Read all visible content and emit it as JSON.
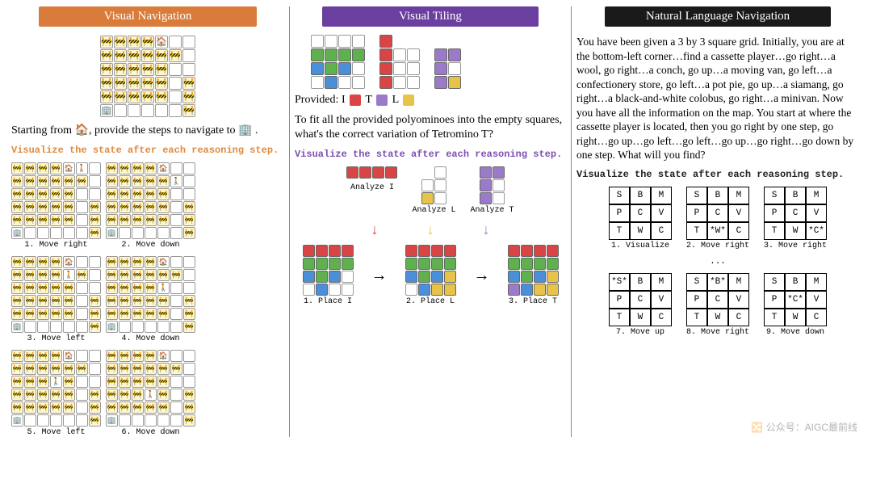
{
  "colors": {
    "header_orange": "#d97b3a",
    "header_purple": "#6b3fa0",
    "header_black": "#1a1a1a",
    "viz_orange": "#e08a3d",
    "viz_purple": "#7b4fb0",
    "viz_black": "#222222",
    "green": "#5fb04f",
    "blue": "#4a8fd8",
    "red": "#d94545",
    "purple": "#9b7bc9",
    "yellow": "#e8c34a",
    "empty": "#ffffff",
    "barrier_bg": "#fff6cc"
  },
  "emoji": {
    "barrier": "🚧",
    "house": "🏠",
    "building": "🏢",
    "person": "🚶"
  },
  "visual_nav": {
    "header": "Visual Navigation",
    "grid": {
      "rows": 6,
      "cols": 7,
      "cells": [
        "B",
        "B",
        "B",
        "B",
        "H",
        "E",
        "E",
        "B",
        "B",
        "B",
        "B",
        "B",
        "B",
        "E",
        "B",
        "B",
        "B",
        "B",
        "B",
        "E",
        "E",
        "B",
        "B",
        "B",
        "B",
        "B",
        "E",
        "B",
        "B",
        "B",
        "B",
        "B",
        "B",
        "E",
        "B",
        "D",
        "E",
        "E",
        "E",
        "E",
        "E",
        "B"
      ]
    },
    "prompt_pre": "Starting from ",
    "prompt_mid": ", provide the steps to navigate to ",
    "prompt_end": " .",
    "viz_label": "Visualize the state after each reasoning step.",
    "steps": [
      {
        "label": "1. Move right",
        "person": [
          0,
          5
        ]
      },
      {
        "label": "2. Move down",
        "person": [
          1,
          5
        ]
      },
      {
        "label": "3. Move left",
        "person": [
          1,
          4
        ]
      },
      {
        "label": "4. Move down",
        "person": [
          2,
          4
        ]
      },
      {
        "label": "5. Move left",
        "person": [
          2,
          3
        ]
      },
      {
        "label": "6. Move down",
        "person": [
          3,
          3
        ]
      }
    ]
  },
  "visual_tiling": {
    "header": "Visual Tiling",
    "base": {
      "rows": 4,
      "cols": 11,
      "cells": [
        "E",
        "E",
        "E",
        "E",
        ".",
        "R",
        ".",
        ".",
        ".",
        ".",
        ".",
        "G",
        "G",
        "G",
        "G",
        ".",
        "R",
        "E",
        "E",
        ".",
        "P",
        "P",
        "B",
        "G",
        "B",
        "E",
        ".",
        "R",
        "E",
        "E",
        ".",
        "P",
        "E",
        "E",
        "B",
        "E",
        "E",
        ".",
        "R",
        "E",
        "E",
        ".",
        "P",
        "Y"
      ]
    },
    "provided_label": "Provided:",
    "provided_items": [
      {
        "letter": "I",
        "color_key": "red"
      },
      {
        "letter": "T",
        "color_key": "purple"
      },
      {
        "letter": "L",
        "color_key": "yellow"
      }
    ],
    "prompt": "To fit all the provided polyominoes into the empty squares, what's the correct variation of Tetromino T?",
    "viz_label": "Visualize the state after each reasoning step.",
    "analyze": [
      {
        "label": "Analyze I",
        "shape": [
          "RRRR"
        ],
        "arrow_color_key": "red"
      },
      {
        "label": "Analyze L",
        "shape": [
          ".E",
          "EE",
          "YE"
        ],
        "arrow_color_key": "yellow"
      },
      {
        "label": "Analyze T",
        "shape": [
          "PP",
          "PE",
          "PE"
        ],
        "arrow_color_key": "purple"
      }
    ],
    "place": [
      {
        "label": "1. Place I",
        "cells": [
          "R",
          "R",
          "R",
          "R",
          "G",
          "G",
          "G",
          "G",
          "B",
          "G",
          "B",
          "E",
          "E",
          "B",
          "E",
          "E"
        ]
      },
      {
        "label": "2. Place L",
        "cells": [
          "R",
          "R",
          "R",
          "R",
          "G",
          "G",
          "G",
          "G",
          "B",
          "G",
          "B",
          "Y",
          "E",
          "B",
          "Y",
          "Y"
        ]
      },
      {
        "label": "3. Place T",
        "cells": [
          "R",
          "R",
          "R",
          "R",
          "G",
          "G",
          "G",
          "G",
          "B",
          "G",
          "B",
          "Y",
          "P",
          "B",
          "Y",
          "Y"
        ]
      }
    ]
  },
  "nl_nav": {
    "header": "Natural Language Navigation",
    "prompt": "You have been given a 3 by 3 square grid. Initially, you are at the bottom-left corner…find a cassette player…go right…a wool, go right…a conch, go up…a moving van, go left…a confectionery store, go left…a pot pie, go up…a siamang, go right…a black-and-white colobus, go right…a minivan. Now you have all the information on the map. You start at where the cassette player is located, then you go right by one step, go right…go up…go left…go left…go up…go right…go down by one step. What will you find?",
    "viz_label": "Visualize the state after each reasoning step.",
    "steps_top": [
      {
        "label": "1. Visualize",
        "grid": [
          "S",
          "B",
          "M",
          "P",
          "C",
          "V",
          "T",
          "W",
          "C"
        ]
      },
      {
        "label": "2. Move right",
        "grid": [
          "S",
          "B",
          "M",
          "P",
          "C",
          "V",
          "T",
          "*W*",
          "C"
        ]
      },
      {
        "label": "3. Move right",
        "grid": [
          "S",
          "B",
          "M",
          "P",
          "C",
          "V",
          "T",
          "W",
          "*C*"
        ]
      }
    ],
    "dots": "...",
    "steps_bottom": [
      {
        "label": "7. Move up",
        "grid": [
          "*S*",
          "B",
          "M",
          "P",
          "C",
          "V",
          "T",
          "W",
          "C"
        ]
      },
      {
        "label": "8. Move right",
        "grid": [
          "S",
          "*B*",
          "M",
          "P",
          "C",
          "V",
          "T",
          "W",
          "C"
        ]
      },
      {
        "label": "9. Move down",
        "grid": [
          "S",
          "B",
          "M",
          "P",
          "*C*",
          "V",
          "T",
          "W",
          "C"
        ]
      }
    ]
  },
  "watermark": "🔀 公众号：AIGC最前线"
}
